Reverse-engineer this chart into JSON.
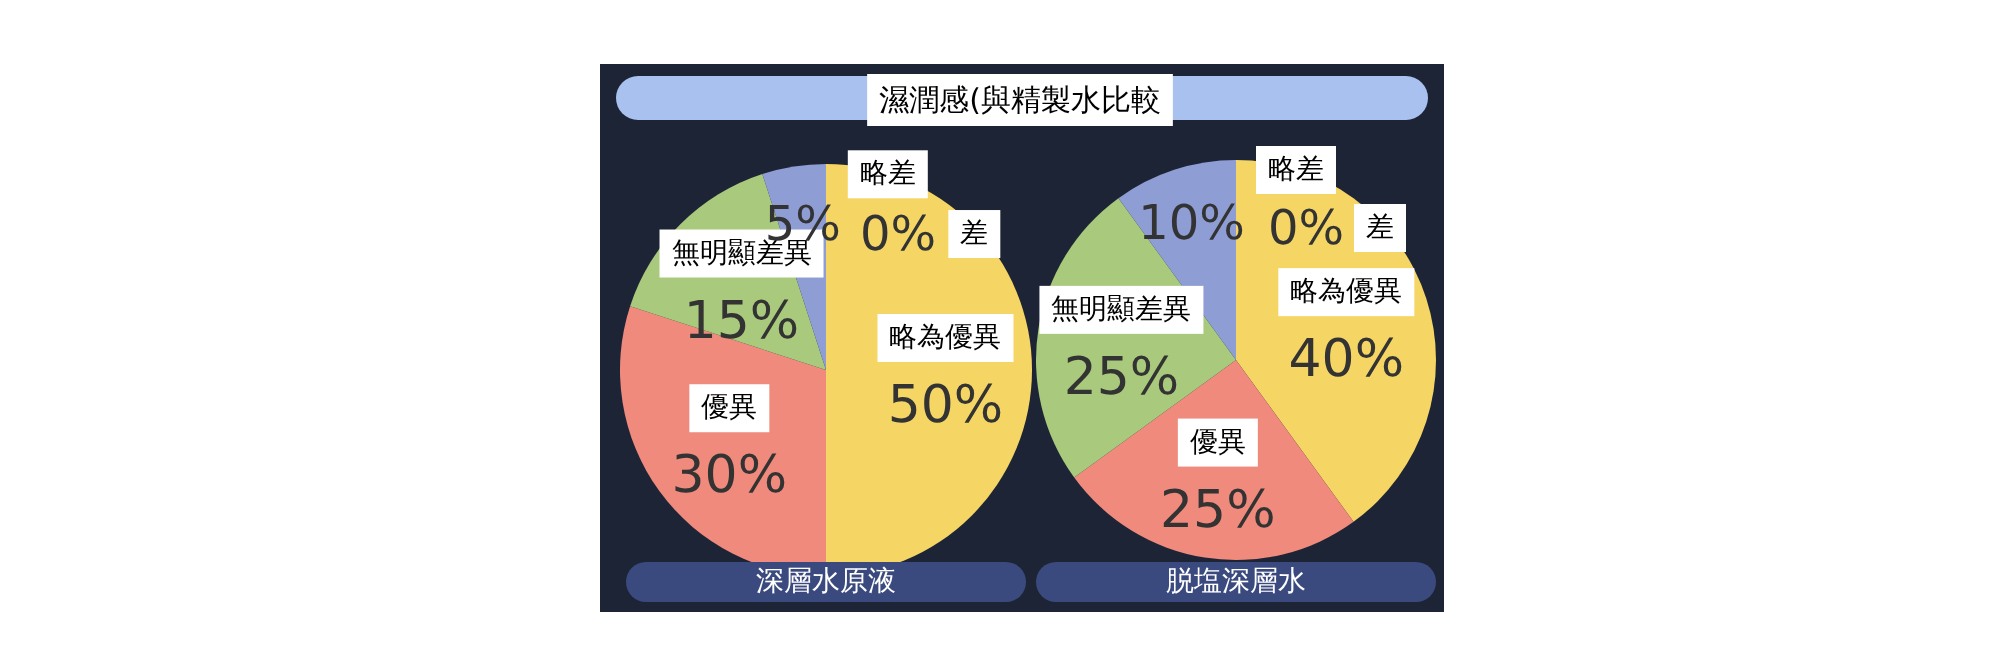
{
  "chart_data": [
    {
      "type": "pie",
      "title": "濕潤感(與精製水比較",
      "subtitle": "深層水原液",
      "categories": [
        "差",
        "略為優異",
        "優異",
        "無明顯差異",
        "略差"
      ],
      "values": [
        0,
        50,
        30,
        15,
        5
      ],
      "value_labels": [
        "0%",
        "50%",
        "30%",
        "15%",
        "5%"
      ],
      "colors": [
        "#e8c84a",
        "#f5d665",
        "#f08a7c",
        "#a9c97c",
        "#8e9dd4"
      ]
    },
    {
      "type": "pie",
      "subtitle": "脱塩深層水",
      "categories": [
        "差",
        "略為優異",
        "優異",
        "無明顯差異",
        "略差"
      ],
      "values": [
        0,
        40,
        25,
        25,
        10
      ],
      "value_labels": [
        "0%",
        "40%",
        "25%",
        "25%",
        "10%"
      ],
      "colors": [
        "#e8c84a",
        "#f5d665",
        "#f08a7c",
        "#a9c97c",
        "#8e9dd4"
      ]
    }
  ]
}
